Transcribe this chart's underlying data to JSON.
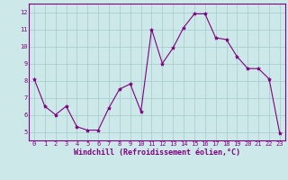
{
  "x": [
    0,
    1,
    2,
    3,
    4,
    5,
    6,
    7,
    8,
    9,
    10,
    11,
    12,
    13,
    14,
    15,
    16,
    17,
    18,
    19,
    20,
    21,
    22,
    23
  ],
  "y": [
    8.1,
    6.5,
    6.0,
    6.5,
    5.3,
    5.1,
    5.1,
    6.4,
    7.5,
    7.8,
    6.2,
    11.0,
    9.0,
    9.9,
    11.1,
    11.9,
    11.9,
    10.5,
    10.4,
    9.4,
    8.7,
    8.7,
    8.1,
    4.9
  ],
  "line_color": "#800080",
  "marker": "*",
  "marker_size": 3,
  "bg_color": "#cce8e8",
  "grid_color": "#aacece",
  "xlabel": "Windchill (Refroidissement éolien,°C)",
  "xlabel_color": "#800080",
  "tick_color": "#800080",
  "ylim": [
    4.5,
    12.5
  ],
  "xlim": [
    -0.5,
    23.5
  ],
  "yticks": [
    5,
    6,
    7,
    8,
    9,
    10,
    11,
    12
  ],
  "xticks": [
    0,
    1,
    2,
    3,
    4,
    5,
    6,
    7,
    8,
    9,
    10,
    11,
    12,
    13,
    14,
    15,
    16,
    17,
    18,
    19,
    20,
    21,
    22,
    23
  ],
  "tick_fontsize": 5.0,
  "xlabel_fontsize": 6.0,
  "ylabel_fontsize": 6.0,
  "linewidth": 0.8
}
